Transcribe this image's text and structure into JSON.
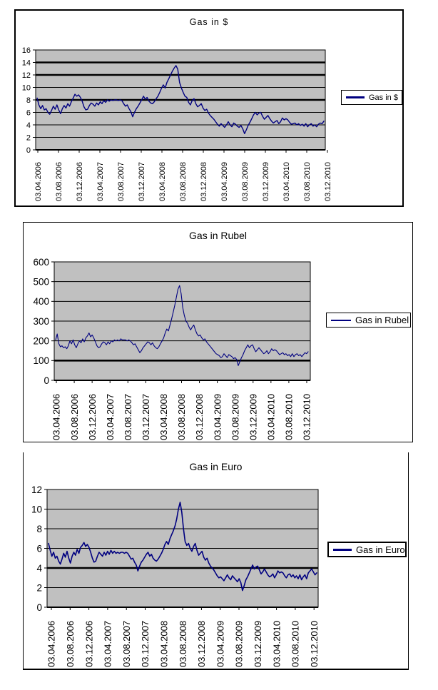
{
  "chart_data": [
    {
      "type": "line",
      "title": "Gas in $",
      "legend": {
        "label": "Gas in $",
        "position": "right"
      },
      "ylim": [
        0,
        16
      ],
      "yticks": [
        0,
        2,
        4,
        6,
        8,
        10,
        12,
        14,
        16
      ],
      "bold_gridlines": [
        8,
        12,
        14
      ],
      "grid": true,
      "x_labels": [
        "03.04.2006",
        "03.08.2006",
        "03.12.2006",
        "03.04.2007",
        "03.08.2007",
        "03.12.2007",
        "03.04.2008",
        "03.08.2008",
        "03.12.2008",
        "03.04.2009",
        "03.08.2009",
        "03.12.2009",
        "03.04.2010",
        "03.08.2010",
        "03.12.2010"
      ],
      "colors": {
        "line": "#000080",
        "plot_bg": "#c0c0c0",
        "gridline": "#000000",
        "frame": "#000000"
      },
      "series": [
        {
          "name": "Gas in $",
          "values": [
            8.3,
            7.2,
            6.6,
            7.1,
            6.4,
            6.6,
            6.0,
            5.7,
            6.3,
            7.0,
            6.5,
            7.2,
            6.4,
            5.8,
            6.6,
            7.1,
            6.7,
            7.4,
            7.0,
            7.7,
            8.3,
            8.9,
            8.6,
            8.8,
            8.4,
            7.8,
            6.9,
            6.4,
            6.5,
            7.1,
            7.5,
            7.3,
            7.0,
            7.5,
            7.2,
            7.7,
            7.4,
            7.9,
            7.6,
            8.0,
            7.8,
            8.0,
            7.9,
            8.0,
            8.0,
            7.9,
            8.0,
            7.9,
            7.4,
            7.0,
            7.2,
            6.6,
            6.1,
            5.3,
            6.0,
            6.6,
            7.0,
            7.5,
            8.0,
            8.6,
            8.1,
            8.4,
            7.8,
            7.5,
            7.4,
            7.7,
            8.2,
            8.6,
            9.2,
            9.9,
            10.4,
            9.9,
            10.8,
            11.4,
            12.0,
            12.6,
            13.1,
            13.5,
            12.9,
            10.8,
            9.9,
            9.2,
            8.6,
            8.4,
            7.6,
            7.2,
            7.9,
            8.2,
            7.4,
            6.9,
            7.1,
            7.4,
            6.7,
            6.3,
            6.5,
            5.9,
            5.5,
            5.2,
            4.9,
            4.5,
            4.1,
            3.8,
            4.2,
            3.9,
            3.6,
            4.0,
            4.5,
            4.0,
            3.7,
            4.3,
            4.1,
            3.8,
            3.6,
            3.9,
            3.4,
            2.6,
            3.2,
            3.9,
            4.4,
            5.0,
            5.6,
            6.0,
            5.6,
            5.9,
            6.0,
            5.4,
            4.9,
            5.2,
            5.5,
            5.0,
            4.6,
            4.3,
            4.5,
            4.7,
            4.2,
            4.5,
            5.1,
            4.8,
            5.0,
            4.8,
            4.4,
            4.1,
            4.2,
            4.3,
            4.0,
            4.2,
            3.9,
            4.1,
            3.8,
            4.2,
            3.7,
            4.0,
            4.2,
            3.8,
            4.0,
            3.7,
            4.1,
            4.3,
            4.2,
            4.6
          ]
        }
      ]
    },
    {
      "type": "line",
      "title": "Gas in Rubel",
      "legend": {
        "label": "Gas in Rubel",
        "position": "right"
      },
      "ylim": [
        0,
        600
      ],
      "yticks": [
        0,
        100,
        200,
        300,
        400,
        500,
        600
      ],
      "bold_gridlines": [
        100
      ],
      "grid": true,
      "x_labels": [
        "03.04.2006",
        "03.08.2006",
        "03.12.2006",
        "03.04.2007",
        "03.08.2007",
        "03.12.2007",
        "03.04.2008",
        "03.08.2008",
        "03.12.2008",
        "03.04.2009",
        "03.08.2009",
        "03.12.2009",
        "03.04.2010",
        "03.08.2010",
        "03.12.2010"
      ],
      "colors": {
        "line": "#000080",
        "plot_bg": "#c0c0c0",
        "gridline": "#000000",
        "frame": "#000000"
      },
      "series": [
        {
          "name": "Gas in Rubel",
          "values": [
            205,
            235,
            185,
            170,
            175,
            165,
            170,
            160,
            175,
            200,
            185,
            205,
            180,
            165,
            185,
            200,
            190,
            210,
            195,
            215,
            225,
            240,
            220,
            230,
            215,
            195,
            175,
            165,
            170,
            185,
            195,
            190,
            180,
            195,
            185,
            200,
            195,
            205,
            200,
            205,
            200,
            210,
            205,
            205,
            205,
            200,
            205,
            200,
            190,
            180,
            185,
            170,
            155,
            140,
            150,
            165,
            175,
            185,
            195,
            190,
            180,
            190,
            175,
            165,
            160,
            170,
            185,
            200,
            215,
            240,
            260,
            250,
            280,
            310,
            345,
            380,
            420,
            460,
            480,
            440,
            370,
            330,
            300,
            290,
            270,
            255,
            270,
            280,
            255,
            235,
            225,
            230,
            215,
            205,
            210,
            195,
            185,
            175,
            165,
            155,
            145,
            135,
            130,
            125,
            115,
            120,
            135,
            125,
            115,
            130,
            125,
            120,
            110,
            115,
            105,
            75,
            95,
            115,
            130,
            150,
            165,
            180,
            165,
            175,
            180,
            160,
            145,
            155,
            165,
            155,
            145,
            135,
            140,
            150,
            135,
            145,
            160,
            150,
            155,
            150,
            140,
            130,
            135,
            140,
            130,
            135,
            125,
            130,
            120,
            135,
            120,
            130,
            135,
            125,
            130,
            120,
            130,
            140,
            135,
            145
          ]
        }
      ]
    },
    {
      "type": "line",
      "title": "Gas in Euro",
      "legend": {
        "label": "Gas in Euro",
        "position": "right"
      },
      "ylim": [
        0,
        12
      ],
      "yticks": [
        0,
        2,
        4,
        6,
        8,
        10,
        12
      ],
      "bold_gridlines": [
        4
      ],
      "grid": true,
      "x_labels": [
        "03.04.2006",
        "03.08.2006",
        "03.12.2006",
        "03.04.2007",
        "03.08.2007",
        "03.12.2007",
        "03.04.2008",
        "03.08.2008",
        "03.12.2008",
        "03.04.2009",
        "03.08.2009",
        "03.12.2009",
        "03.04.2010",
        "03.08.2010",
        "03.12.2010"
      ],
      "colors": {
        "line": "#000080",
        "plot_bg": "#c0c0c0",
        "gridline": "#000000",
        "frame": "#000000"
      },
      "series": [
        {
          "name": "Gas in Euro",
          "values": [
            6.5,
            5.8,
            5.2,
            5.6,
            5.0,
            5.2,
            4.7,
            4.4,
            4.9,
            5.5,
            5.1,
            5.7,
            5.0,
            4.5,
            5.2,
            5.6,
            5.3,
            5.9,
            5.5,
            6.1,
            6.3,
            6.6,
            6.2,
            6.4,
            6.1,
            5.6,
            5.0,
            4.6,
            4.7,
            5.2,
            5.6,
            5.4,
            5.2,
            5.6,
            5.3,
            5.7,
            5.4,
            5.8,
            5.5,
            5.7,
            5.5,
            5.6,
            5.5,
            5.6,
            5.6,
            5.5,
            5.6,
            5.5,
            5.2,
            4.9,
            5.0,
            4.6,
            4.3,
            3.7,
            4.2,
            4.6,
            4.8,
            5.1,
            5.4,
            5.6,
            5.2,
            5.4,
            5.0,
            4.8,
            4.7,
            4.9,
            5.2,
            5.5,
            5.9,
            6.4,
            6.7,
            6.4,
            7.0,
            7.4,
            7.8,
            8.3,
            9.0,
            10.0,
            10.7,
            9.7,
            8.0,
            6.7,
            6.3,
            6.5,
            6.0,
            5.7,
            6.2,
            6.5,
            5.8,
            5.3,
            5.5,
            5.7,
            5.1,
            4.8,
            5.0,
            4.5,
            4.2,
            4.0,
            3.8,
            3.5,
            3.2,
            3.0,
            3.1,
            2.9,
            2.7,
            3.0,
            3.3,
            3.0,
            2.8,
            3.2,
            3.0,
            2.8,
            2.6,
            2.9,
            2.5,
            1.7,
            2.2,
            2.8,
            3.1,
            3.5,
            3.9,
            4.3,
            3.9,
            4.1,
            4.2,
            3.8,
            3.4,
            3.6,
            3.9,
            3.6,
            3.3,
            3.1,
            3.2,
            3.4,
            3.0,
            3.3,
            3.7,
            3.5,
            3.6,
            3.5,
            3.2,
            3.0,
            3.3,
            3.4,
            3.1,
            3.3,
            3.0,
            3.2,
            2.9,
            3.3,
            2.8,
            3.1,
            3.3,
            2.9,
            3.5,
            3.7,
            3.9,
            3.6,
            3.3,
            3.5
          ]
        }
      ]
    }
  ]
}
